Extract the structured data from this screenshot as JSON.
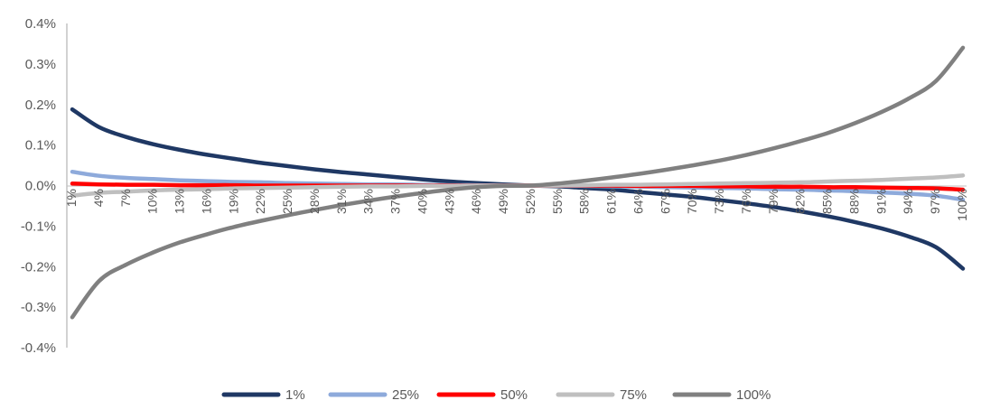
{
  "chart_data": {
    "type": "line",
    "title": "",
    "xlabel": "",
    "ylabel": "",
    "ylim": [
      -0.4,
      0.4
    ],
    "y_ticks": [
      "0.4%",
      "0.3%",
      "0.2%",
      "0.1%",
      "0.0%",
      "-0.1%",
      "-0.2%",
      "-0.3%",
      "-0.4%"
    ],
    "x_tick_labels": [
      "1%",
      "4%",
      "7%",
      "10%",
      "13%",
      "16%",
      "19%",
      "22%",
      "25%",
      "28%",
      "31%",
      "34%",
      "37%",
      "40%",
      "43%",
      "46%",
      "49%",
      "52%",
      "55%",
      "58%",
      "61%",
      "64%",
      "67%",
      "70%",
      "73%",
      "76%",
      "79%",
      "82%",
      "85%",
      "88%",
      "91%",
      "94%",
      "97%",
      "100%"
    ],
    "x": [
      1,
      4,
      7,
      10,
      13,
      16,
      19,
      22,
      25,
      28,
      31,
      34,
      37,
      40,
      43,
      46,
      49,
      52,
      55,
      58,
      61,
      64,
      67,
      70,
      73,
      76,
      79,
      82,
      85,
      88,
      91,
      94,
      97,
      100
    ],
    "grid": false,
    "legend_position": "bottom",
    "series": [
      {
        "name": "1%",
        "color": "#1f3864",
        "values": [
          0.188,
          0.144,
          0.12,
          0.102,
          0.088,
          0.076,
          0.066,
          0.056,
          0.048,
          0.04,
          0.033,
          0.027,
          0.021,
          0.015,
          0.01,
          0.006,
          0.003,
          0.0,
          -0.002,
          -0.006,
          -0.01,
          -0.016,
          -0.022,
          -0.028,
          -0.036,
          -0.044,
          -0.053,
          -0.064,
          -0.076,
          -0.09,
          -0.106,
          -0.126,
          -0.152,
          -0.205
        ]
      },
      {
        "name": "25%",
        "color": "#8eaadb",
        "values": [
          0.034,
          0.024,
          0.019,
          0.016,
          0.013,
          0.011,
          0.009,
          0.008,
          0.006,
          0.005,
          0.004,
          0.003,
          0.003,
          0.002,
          0.001,
          0.001,
          0.0,
          0.0,
          0.0,
          -0.001,
          -0.002,
          -0.003,
          -0.004,
          -0.005,
          -0.006,
          -0.007,
          -0.009,
          -0.01,
          -0.012,
          -0.014,
          -0.017,
          -0.02,
          -0.025,
          -0.035
        ]
      },
      {
        "name": "50%",
        "color": "#ff0000",
        "values": [
          0.005,
          0.003,
          0.002,
          0.002,
          0.001,
          0.001,
          0.001,
          0.0,
          0.0,
          0.0,
          0.0,
          0.0,
          0.0,
          0.0,
          0.0,
          0.0,
          0.0,
          0.0,
          0.0,
          0.0,
          0.0,
          -0.001,
          -0.001,
          -0.001,
          -0.002,
          -0.002,
          -0.003,
          -0.003,
          -0.004,
          -0.004,
          -0.005,
          -0.006,
          -0.007,
          -0.01
        ]
      },
      {
        "name": "75%",
        "color": "#bfbfbf",
        "values": [
          -0.025,
          -0.018,
          -0.015,
          -0.012,
          -0.01,
          -0.009,
          -0.007,
          -0.006,
          -0.005,
          -0.004,
          -0.003,
          -0.002,
          -0.002,
          -0.001,
          -0.001,
          0.0,
          0.0,
          0.0,
          0.0,
          0.001,
          0.002,
          0.002,
          0.003,
          0.004,
          0.005,
          0.006,
          0.007,
          0.008,
          0.01,
          0.012,
          0.014,
          0.017,
          0.02,
          0.025
        ]
      },
      {
        "name": "100%",
        "color": "#808080",
        "values": [
          -0.325,
          -0.235,
          -0.195,
          -0.165,
          -0.14,
          -0.12,
          -0.102,
          -0.087,
          -0.073,
          -0.06,
          -0.048,
          -0.037,
          -0.027,
          -0.018,
          -0.01,
          -0.004,
          -0.001,
          0.0,
          0.005,
          0.012,
          0.02,
          0.029,
          0.039,
          0.05,
          0.062,
          0.076,
          0.092,
          0.11,
          0.13,
          0.154,
          0.182,
          0.215,
          0.258,
          0.34
        ]
      }
    ]
  }
}
